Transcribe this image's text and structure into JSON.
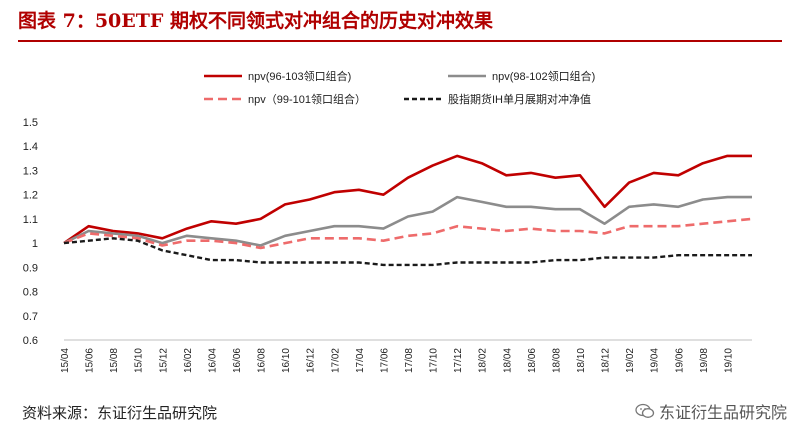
{
  "header": {
    "title": "图表 7：50ETF 期权不同领式对冲组合的历史对冲效果"
  },
  "footer": {
    "source": "资料来源：东证衍生品研究院",
    "watermark": "东证衍生品研究院"
  },
  "colors": {
    "title": "#b00000",
    "s1": "#c00000",
    "s2": "#8c8c8c",
    "s3": "#ee6b6b",
    "s4": "#1a1a1a"
  },
  "chart_data": {
    "type": "line",
    "title": "",
    "xlabel": "",
    "ylabel": "",
    "ylim": [
      0.6,
      1.5
    ],
    "yticks": [
      0.6,
      0.7,
      0.8,
      0.9,
      1.0,
      1.1,
      1.2,
      1.3,
      1.4,
      1.5
    ],
    "ytick_labels": [
      "0.6",
      "0.7",
      "0.8",
      "0.9",
      "1",
      "1.1",
      "1.2",
      "1.3",
      "1.4",
      "1.5"
    ],
    "grid": false,
    "legend": "top",
    "x_labels": [
      "15/04",
      "15/06",
      "15/08",
      "15/10",
      "15/12",
      "16/02",
      "16/04",
      "16/06",
      "16/08",
      "16/10",
      "16/12",
      "17/02",
      "17/04",
      "17/06",
      "17/08",
      "17/10",
      "17/12",
      "18/02",
      "18/04",
      "18/06",
      "18/08",
      "18/10",
      "18/12",
      "19/02",
      "19/04",
      "19/06",
      "19/08",
      "19/10"
    ],
    "x": [
      "15/04",
      "15/06",
      "15/08",
      "15/10",
      "15/12",
      "16/02",
      "16/04",
      "16/06",
      "16/08",
      "16/10",
      "16/12",
      "17/02",
      "17/04",
      "17/06",
      "17/08",
      "17/10",
      "17/12",
      "18/02",
      "18/04",
      "18/06",
      "18/08",
      "18/10",
      "18/12",
      "19/02",
      "19/04",
      "19/06",
      "19/08",
      "19/10",
      "19/11"
    ],
    "series": [
      {
        "name": "npv(96-103领口组合)",
        "style": "solid",
        "color": "#c00000",
        "values": [
          1.0,
          1.07,
          1.05,
          1.04,
          1.02,
          1.06,
          1.09,
          1.08,
          1.1,
          1.16,
          1.18,
          1.21,
          1.22,
          1.2,
          1.27,
          1.32,
          1.36,
          1.33,
          1.28,
          1.29,
          1.27,
          1.28,
          1.15,
          1.25,
          1.29,
          1.28,
          1.33,
          1.36,
          1.36
        ]
      },
      {
        "name": "npv(98-102领口组合)",
        "style": "solid",
        "color": "#8c8c8c",
        "values": [
          1.0,
          1.05,
          1.04,
          1.03,
          1.0,
          1.03,
          1.02,
          1.01,
          0.99,
          1.03,
          1.05,
          1.07,
          1.07,
          1.06,
          1.11,
          1.13,
          1.19,
          1.17,
          1.15,
          1.15,
          1.14,
          1.14,
          1.08,
          1.15,
          1.16,
          1.15,
          1.18,
          1.19,
          1.19
        ]
      },
      {
        "name": "npv（99-101领口组合）",
        "style": "dashed",
        "color": "#ee6b6b",
        "values": [
          1.0,
          1.04,
          1.03,
          1.02,
          0.99,
          1.01,
          1.01,
          1.0,
          0.98,
          1.0,
          1.02,
          1.02,
          1.02,
          1.01,
          1.03,
          1.04,
          1.07,
          1.06,
          1.05,
          1.06,
          1.05,
          1.05,
          1.04,
          1.07,
          1.07,
          1.07,
          1.08,
          1.09,
          1.1
        ]
      },
      {
        "name": "股指期货IH单月展期对冲净值",
        "style": "dashed",
        "color": "#1a1a1a",
        "values": [
          1.0,
          1.01,
          1.02,
          1.01,
          0.97,
          0.95,
          0.93,
          0.93,
          0.92,
          0.92,
          0.92,
          0.92,
          0.92,
          0.91,
          0.91,
          0.91,
          0.92,
          0.92,
          0.92,
          0.92,
          0.93,
          0.93,
          0.94,
          0.94,
          0.94,
          0.95,
          0.95,
          0.95,
          0.95
        ]
      }
    ]
  }
}
